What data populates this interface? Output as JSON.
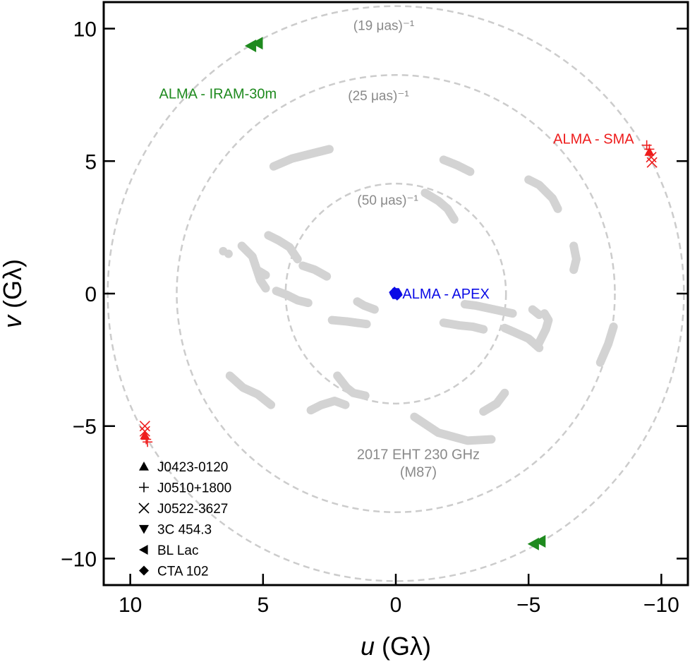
{
  "chart_data": {
    "type": "scatter",
    "title": "",
    "xlabel": {
      "pre": "u",
      "post": "(Gλ)"
    },
    "ylabel": {
      "pre": "v",
      "post": "(Gλ)"
    },
    "xlim": [
      11.0,
      -11.0
    ],
    "ylim": [
      -11.0,
      11.0
    ],
    "x_ticks": [
      10,
      5,
      0,
      -5,
      -10
    ],
    "y_ticks": [
      10,
      5,
      0,
      -5,
      -10
    ],
    "x_tick_labels": [
      "10",
      "5",
      "0",
      "−5",
      "−10"
    ],
    "y_tick_labels": [
      "10",
      "5",
      "0",
      "−5",
      "−10"
    ],
    "grid": false,
    "colors": {
      "eht": "#d3d3d3",
      "ring": "#cccccc",
      "ring_label": "#8a8a8a",
      "sma": "#ee1c1c",
      "iram": "#1e8a1e",
      "apex": "#0a0ae6"
    },
    "rings": [
      {
        "radius": 4.15,
        "label": "(50 μas)⁻¹",
        "label_at": [
          1.45,
          3.35
        ]
      },
      {
        "radius": 8.25,
        "label": "(25 μas)⁻¹",
        "label_at": [
          1.8,
          7.3
        ]
      },
      {
        "radius": 10.85,
        "label": "(19 μas)⁻¹",
        "label_at": [
          1.6,
          9.95
        ]
      }
    ],
    "eht_label": {
      "line1": "2017 EHT 230 GHz",
      "line2": "(M87)",
      "at": [
        -0.85,
        -6.25
      ]
    },
    "eht_tracks": [
      [
        [
          4.6,
          4.8
        ],
        [
          3.9,
          5.1
        ],
        [
          3.1,
          5.3
        ],
        [
          2.5,
          5.45
        ]
      ],
      [
        [
          -1.8,
          5.05
        ],
        [
          -2.3,
          4.85
        ],
        [
          -2.8,
          4.6
        ]
      ],
      [
        [
          -1.1,
          3.8
        ],
        [
          -1.6,
          3.5
        ],
        [
          -1.95,
          3.2
        ],
        [
          -2.2,
          2.8
        ]
      ],
      [
        [
          -5.0,
          4.3
        ],
        [
          -5.4,
          4.1
        ],
        [
          -5.9,
          3.6
        ],
        [
          -6.1,
          3.2
        ]
      ],
      [
        [
          -6.7,
          1.8
        ],
        [
          -6.8,
          1.3
        ],
        [
          -6.7,
          0.9
        ]
      ],
      [
        [
          4.8,
          2.2
        ],
        [
          4.4,
          2.0
        ],
        [
          4.0,
          1.75
        ],
        [
          3.7,
          1.3
        ]
      ],
      [
        [
          5.8,
          1.8
        ],
        [
          5.4,
          1.4
        ],
        [
          5.1,
          0.5
        ],
        [
          4.9,
          0.2
        ]
      ],
      [
        [
          5.15,
          0.85
        ],
        [
          4.9,
          0.7
        ]
      ],
      [
        [
          6.3,
          1.5
        ]
      ],
      [
        [
          3.5,
          1.05
        ],
        [
          3.05,
          0.9
        ],
        [
          2.6,
          0.65
        ]
      ],
      [
        [
          1.45,
          -0.3
        ],
        [
          1.2,
          -0.45
        ],
        [
          0.8,
          -0.6
        ]
      ],
      [
        [
          4.5,
          0.1
        ],
        [
          4.1,
          -0.05
        ],
        [
          3.7,
          -0.25
        ],
        [
          3.3,
          -0.35
        ]
      ],
      [
        [
          2.4,
          -1.0
        ],
        [
          1.85,
          -1.05
        ],
        [
          1.1,
          -1.15
        ]
      ],
      [
        [
          -2.6,
          -0.4
        ],
        [
          -3.0,
          -0.45
        ],
        [
          -3.7,
          -0.6
        ],
        [
          -4.4,
          -0.75
        ]
      ],
      [
        [
          -4.1,
          -1.3
        ],
        [
          -4.45,
          -1.45
        ],
        [
          -5.0,
          -1.7
        ],
        [
          -5.4,
          -2.05
        ]
      ],
      [
        [
          -5.15,
          -0.6
        ],
        [
          -5.4,
          -0.8
        ]
      ],
      [
        [
          -5.6,
          -0.75
        ],
        [
          -5.75,
          -1.0
        ],
        [
          -5.65,
          -1.35
        ],
        [
          -5.35,
          -1.95
        ]
      ],
      [
        [
          -8.2,
          -1.25
        ],
        [
          -8.0,
          -1.9
        ],
        [
          -7.7,
          -2.6
        ]
      ],
      [
        [
          -1.8,
          -1.1
        ],
        [
          -2.4,
          -1.2
        ],
        [
          -2.9,
          -1.25
        ],
        [
          -3.3,
          -1.35
        ]
      ],
      [
        [
          6.25,
          -3.1
        ],
        [
          5.75,
          -3.55
        ],
        [
          5.2,
          -3.8
        ],
        [
          4.7,
          -4.2
        ]
      ],
      [
        [
          2.2,
          -3.1
        ],
        [
          1.85,
          -3.55
        ],
        [
          1.6,
          -3.75
        ],
        [
          1.15,
          -3.85
        ]
      ],
      [
        [
          3.2,
          -4.4
        ],
        [
          2.8,
          -4.2
        ],
        [
          2.3,
          -4.05
        ],
        [
          1.9,
          -4.2
        ]
      ],
      [
        [
          -0.7,
          -4.65
        ],
        [
          -1.6,
          -5.25
        ],
        [
          -2.7,
          -5.55
        ],
        [
          -3.6,
          -5.5
        ]
      ],
      [
        [
          -4.1,
          -3.75
        ],
        [
          -3.8,
          -4.15
        ],
        [
          -3.3,
          -4.45
        ]
      ],
      [
        [
          6.5,
          1.6
        ]
      ]
    ],
    "series": [
      {
        "name": "ALMA - SMA",
        "color": "#ee1c1c",
        "points": [
          {
            "x": -9.45,
            "y": 5.6,
            "m": "plus"
          },
          {
            "x": -9.55,
            "y": 5.45,
            "m": "plus"
          },
          {
            "x": -9.55,
            "y": 5.35,
            "m": "triangle"
          },
          {
            "x": -9.62,
            "y": 5.15,
            "m": "x"
          },
          {
            "x": -9.65,
            "y": 4.95,
            "m": "x"
          },
          {
            "x": 9.45,
            "y": -5.0,
            "m": "x"
          },
          {
            "x": 9.45,
            "y": -5.2,
            "m": "x"
          },
          {
            "x": 9.45,
            "y": -5.35,
            "m": "triangle"
          },
          {
            "x": 9.4,
            "y": -5.5,
            "m": "plus"
          },
          {
            "x": 9.35,
            "y": -5.6,
            "m": "plus"
          }
        ]
      },
      {
        "name": "ALMA - IRAM-30m",
        "color": "#1e8a1e",
        "points": [
          {
            "x": 5.2,
            "y": 9.45,
            "m": "tri-left"
          },
          {
            "x": 5.45,
            "y": 9.35,
            "m": "tri-left"
          },
          {
            "x": -5.2,
            "y": -9.45,
            "m": "tri-left"
          },
          {
            "x": -5.45,
            "y": -9.35,
            "m": "tri-left"
          }
        ]
      },
      {
        "name": "ALMA - APEX",
        "color": "#0a0ae6",
        "points": [
          {
            "x": 0.05,
            "y": 0.05,
            "m": "diamond"
          },
          {
            "x": -0.05,
            "y": -0.05,
            "m": "diamond"
          },
          {
            "x": 0.0,
            "y": 0.0,
            "m": "hexagon"
          }
        ]
      }
    ],
    "pair_labels": [
      {
        "text": "ALMA - SMA",
        "color": "#ee1c1c",
        "at": [
          -7.45,
          5.85
        ]
      },
      {
        "text": "ALMA - IRAM-30m",
        "color": "#1e8a1e",
        "at": [
          6.7,
          7.55
        ]
      },
      {
        "text": "ALMA - APEX",
        "color": "#0a0ae6",
        "at": [
          -0.25,
          0.0
        ]
      }
    ],
    "legend": {
      "placement": "bottom-left",
      "entries": [
        {
          "marker": "triangle",
          "label": "J0423-0120"
        },
        {
          "marker": "plus",
          "label": "J0510+1800"
        },
        {
          "marker": "x",
          "label": "J0522-3627"
        },
        {
          "marker": "tri-down",
          "label": "3C 454.3"
        },
        {
          "marker": "tri-left",
          "label": "BL Lac"
        },
        {
          "marker": "diamond",
          "label": "CTA 102"
        }
      ]
    }
  }
}
